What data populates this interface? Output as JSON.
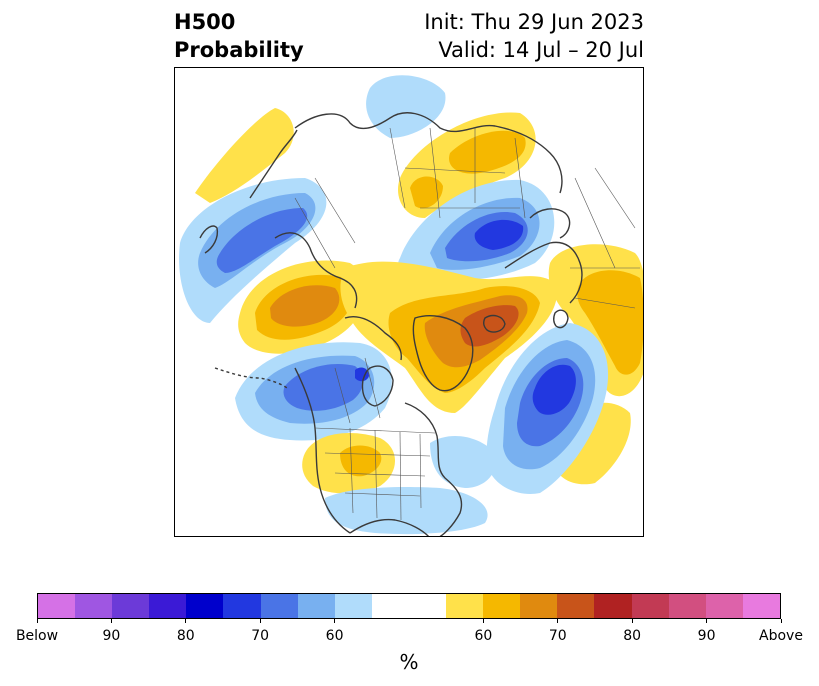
{
  "header": {
    "title_line1": "H500",
    "title_line2": "Probability",
    "init": "Init: Thu 29 Jun 2023",
    "valid": "Valid: 14 Jul – 20 Jul"
  },
  "colorbar": {
    "unit": "%",
    "segments": [
      "#d571e6",
      "#9f56e2",
      "#6c3ad8",
      "#3b1ad6",
      "#0000cc",
      "#2238e0",
      "#4a74e6",
      "#78b0f0",
      "#b0dcfb",
      "#ffffff",
      "#ffffff",
      "#ffe14a",
      "#f5b800",
      "#e08a0f",
      "#c8541a",
      "#b02222",
      "#c23a54",
      "#d24f80",
      "#dd62aa",
      "#e87adf"
    ],
    "tick_labels": [
      "Below",
      "90",
      "80",
      "70",
      "60",
      "60",
      "70",
      "80",
      "90",
      "Above"
    ]
  },
  "map": {
    "projection": "north-polar-stereographic",
    "anomalies": [
      {
        "region": "eastern-pacific-aleutians",
        "sign": "below",
        "level": "70"
      },
      {
        "region": "alaska-western-canada",
        "sign": "above",
        "level": "70"
      },
      {
        "region": "north-atlantic-greenland-sea",
        "sign": "above",
        "level": "75"
      },
      {
        "region": "northern-europe-scandinavia",
        "sign": "below",
        "level": "80"
      },
      {
        "region": "central-asia",
        "sign": "above",
        "level": "65"
      },
      {
        "region": "north-central-pacific",
        "sign": "below",
        "level": "80"
      },
      {
        "region": "central-canada-hudson-bay",
        "sign": "below",
        "level": "75"
      },
      {
        "region": "southwestern-united-states",
        "sign": "above",
        "level": "60"
      },
      {
        "region": "east-asia",
        "sign": "above",
        "level": "60"
      }
    ]
  }
}
